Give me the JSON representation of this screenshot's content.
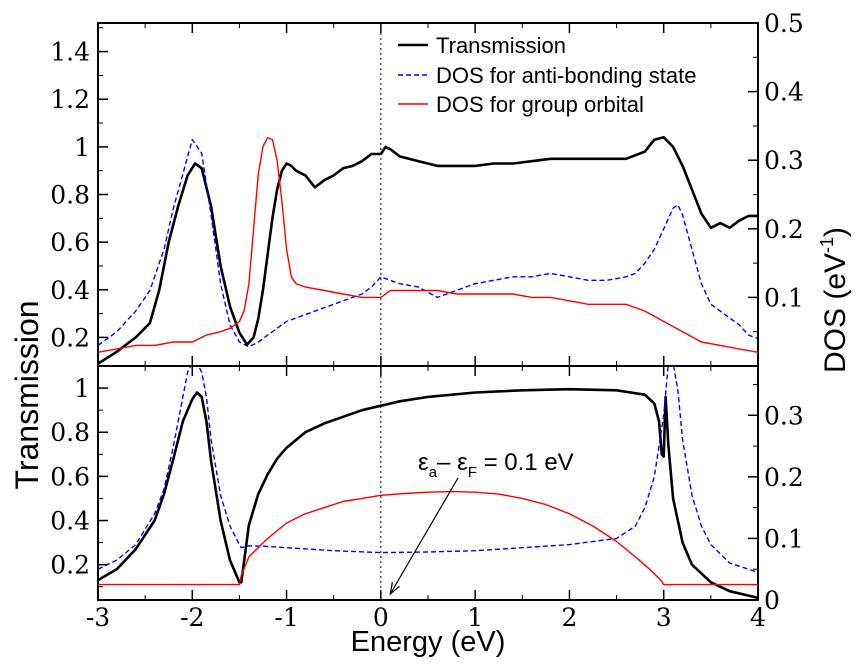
{
  "chart_data": {
    "type": "line",
    "colors": {
      "transmission": "#000000",
      "antibonding": "#0000ff",
      "group": "#ff0000",
      "axis": "#000000"
    },
    "xlabel": "Energy (eV)",
    "ylabel_left": "Transmission",
    "ylabel_right_main": "DOS (eV",
    "ylabel_right_sup": "-1",
    "ylabel_right_end": ")",
    "xlim": [
      -3,
      4
    ],
    "x_ticks": [
      -3,
      -2,
      -1,
      0,
      1,
      2,
      3,
      4
    ],
    "x_tick_labels": [
      "-3",
      "-2",
      "-1",
      "0",
      "1",
      "2",
      "3",
      "4"
    ],
    "fermi_line_x": 0,
    "panels": [
      {
        "name": "top",
        "ylim_left": [
          0.08,
          1.52
        ],
        "ylim_right": [
          0.0,
          0.5
        ],
        "left_ticks": [
          0.2,
          0.4,
          0.6,
          0.8,
          1.0,
          1.2,
          1.4
        ],
        "left_tick_labels": [
          "0.2",
          "0.4",
          "0.6",
          "0.8",
          "1",
          "1.2",
          "1.4"
        ],
        "right_ticks": [
          0.1,
          0.2,
          0.3,
          0.4,
          0.5
        ],
        "right_tick_labels": [
          "0.1",
          "0.2",
          "0.3",
          "0.4",
          "0.5"
        ],
        "legend": [
          "Transmission",
          "DOS for anti-bonding state",
          "DOS for group orbital"
        ],
        "series": [
          {
            "name": "Transmission",
            "axis": "left",
            "color_key": "transmission",
            "dash": false,
            "width": 2.6,
            "x": [
              -3,
              -2.8,
              -2.6,
              -2.45,
              -2.35,
              -2.25,
              -2.15,
              -2.05,
              -1.97,
              -1.9,
              -1.8,
              -1.7,
              -1.6,
              -1.5,
              -1.42,
              -1.35,
              -1.3,
              -1.25,
              -1.2,
              -1.15,
              -1.1,
              -1.05,
              -1.0,
              -0.95,
              -0.9,
              -0.8,
              -0.7,
              -0.6,
              -0.5,
              -0.4,
              -0.3,
              -0.2,
              -0.1,
              0.0,
              0.05,
              0.1,
              0.2,
              0.4,
              0.6,
              0.8,
              1.0,
              1.2,
              1.4,
              1.6,
              1.8,
              2.0,
              2.2,
              2.4,
              2.6,
              2.8,
              2.9,
              3.0,
              3.1,
              3.2,
              3.3,
              3.4,
              3.5,
              3.6,
              3.7,
              3.8,
              3.9,
              4.0
            ],
            "y": [
              0.09,
              0.14,
              0.2,
              0.26,
              0.4,
              0.6,
              0.75,
              0.88,
              0.93,
              0.91,
              0.75,
              0.5,
              0.33,
              0.22,
              0.17,
              0.2,
              0.28,
              0.4,
              0.55,
              0.7,
              0.82,
              0.9,
              0.93,
              0.92,
              0.9,
              0.88,
              0.83,
              0.86,
              0.88,
              0.91,
              0.92,
              0.94,
              0.97,
              0.97,
              1.0,
              0.99,
              0.96,
              0.94,
              0.92,
              0.92,
              0.92,
              0.93,
              0.93,
              0.94,
              0.95,
              0.95,
              0.95,
              0.95,
              0.95,
              0.98,
              1.03,
              1.04,
              1.0,
              0.92,
              0.82,
              0.72,
              0.66,
              0.68,
              0.66,
              0.69,
              0.71,
              0.71
            ]
          },
          {
            "name": "DOS for anti-bonding state",
            "axis": "right",
            "color_key": "antibonding",
            "dash": true,
            "width": 1.4,
            "x": [
              -3,
              -2.8,
              -2.6,
              -2.45,
              -2.3,
              -2.2,
              -2.1,
              -2.0,
              -1.9,
              -1.8,
              -1.7,
              -1.6,
              -1.5,
              -1.4,
              -1.3,
              -1.2,
              -1.1,
              -1.0,
              -0.9,
              -0.8,
              -0.7,
              -0.6,
              -0.5,
              -0.4,
              -0.3,
              -0.2,
              -0.1,
              0.0,
              0.1,
              0.2,
              0.4,
              0.6,
              0.8,
              1.0,
              1.2,
              1.4,
              1.6,
              1.8,
              2.0,
              2.2,
              2.4,
              2.6,
              2.7,
              2.8,
              2.9,
              3.0,
              3.1,
              3.15,
              3.2,
              3.3,
              3.4,
              3.5,
              3.6,
              3.7,
              3.8,
              3.9,
              4.0
            ],
            "y": [
              0.03,
              0.05,
              0.08,
              0.11,
              0.17,
              0.23,
              0.28,
              0.33,
              0.31,
              0.22,
              0.12,
              0.06,
              0.035,
              0.028,
              0.035,
              0.045,
              0.055,
              0.065,
              0.07,
              0.075,
              0.08,
              0.085,
              0.09,
              0.095,
              0.1,
              0.105,
              0.115,
              0.13,
              0.125,
              0.12,
              0.115,
              0.1,
              0.11,
              0.12,
              0.125,
              0.13,
              0.13,
              0.135,
              0.13,
              0.125,
              0.125,
              0.13,
              0.135,
              0.15,
              0.17,
              0.2,
              0.23,
              0.235,
              0.22,
              0.17,
              0.12,
              0.09,
              0.08,
              0.07,
              0.06,
              0.045,
              0.04
            ]
          },
          {
            "name": "DOS for group orbital",
            "axis": "right",
            "color_key": "group",
            "dash": false,
            "width": 1.4,
            "x": [
              -3,
              -2.8,
              -2.6,
              -2.4,
              -2.2,
              -2.0,
              -1.85,
              -1.7,
              -1.6,
              -1.5,
              -1.45,
              -1.4,
              -1.35,
              -1.3,
              -1.25,
              -1.2,
              -1.15,
              -1.1,
              -1.05,
              -1.0,
              -0.95,
              -0.9,
              -0.8,
              -0.6,
              -0.4,
              -0.2,
              -0.1,
              0.0,
              0.1,
              0.2,
              0.4,
              0.6,
              0.8,
              1.0,
              1.2,
              1.4,
              1.6,
              1.8,
              2.0,
              2.2,
              2.4,
              2.6,
              2.8,
              3.0,
              3.2,
              3.4,
              3.6,
              3.8,
              4.0
            ],
            "y": [
              0.02,
              0.025,
              0.03,
              0.03,
              0.035,
              0.035,
              0.045,
              0.05,
              0.055,
              0.065,
              0.08,
              0.12,
              0.2,
              0.28,
              0.32,
              0.333,
              0.33,
              0.3,
              0.24,
              0.17,
              0.13,
              0.12,
              0.115,
              0.11,
              0.105,
              0.1,
              0.1,
              0.1,
              0.11,
              0.11,
              0.11,
              0.11,
              0.105,
              0.105,
              0.105,
              0.105,
              0.1,
              0.1,
              0.095,
              0.09,
              0.09,
              0.09,
              0.08,
              0.065,
              0.05,
              0.035,
              0.03,
              0.025,
              0.02
            ]
          }
        ]
      },
      {
        "name": "bottom",
        "ylim_left": [
          0.04,
          1.1
        ],
        "ylim_right": [
          0.0,
          0.38
        ],
        "left_ticks": [
          0.2,
          0.4,
          0.6,
          0.8,
          1.0
        ],
        "left_tick_labels": [
          "0.2",
          "0.4",
          "0.6",
          "0.8",
          "1"
        ],
        "right_ticks": [
          0.0,
          0.1,
          0.2,
          0.3
        ],
        "right_tick_labels": [
          "0",
          "0.1",
          "0.2",
          "0.3"
        ],
        "annotation": {
          "main1": "ε",
          "sub1": "a",
          "mid": "– ε",
          "sub2": "F",
          "tail": " = 0.1 eV",
          "arrow_to_x": 0.1
        },
        "series": [
          {
            "name": "Transmission",
            "axis": "left",
            "color_key": "transmission",
            "dash": false,
            "width": 2.6,
            "x": [
              -3,
              -2.8,
              -2.6,
              -2.4,
              -2.3,
              -2.2,
              -2.1,
              -2.0,
              -1.95,
              -1.9,
              -1.85,
              -1.8,
              -1.7,
              -1.6,
              -1.5,
              -1.48,
              -1.4,
              -1.3,
              -1.2,
              -1.1,
              -1.0,
              -0.8,
              -0.6,
              -0.4,
              -0.2,
              0.0,
              0.2,
              0.5,
              1.0,
              1.5,
              2.0,
              2.5,
              2.8,
              2.9,
              2.95,
              2.98,
              3.0,
              3.02,
              3.05,
              3.1,
              3.2,
              3.3,
              3.5,
              3.7,
              3.9,
              4.0
            ],
            "y": [
              0.13,
              0.18,
              0.27,
              0.4,
              0.52,
              0.68,
              0.85,
              0.95,
              0.98,
              0.96,
              0.85,
              0.67,
              0.4,
              0.22,
              0.12,
              0.12,
              0.38,
              0.52,
              0.61,
              0.68,
              0.73,
              0.8,
              0.84,
              0.87,
              0.9,
              0.92,
              0.94,
              0.96,
              0.98,
              0.99,
              0.995,
              0.99,
              0.97,
              0.93,
              0.85,
              0.7,
              0.69,
              0.96,
              0.74,
              0.5,
              0.3,
              0.2,
              0.12,
              0.08,
              0.06,
              0.05
            ]
          },
          {
            "name": "DOS for anti-bonding state",
            "axis": "right",
            "color_key": "antibonding",
            "dash": true,
            "width": 1.4,
            "x": [
              -3,
              -2.8,
              -2.6,
              -2.4,
              -2.3,
              -2.2,
              -2.1,
              -2.05,
              -2.0,
              -1.95,
              -1.9,
              -1.85,
              -1.8,
              -1.7,
              -1.6,
              -1.5,
              -1.48,
              -1.4,
              -1.2,
              -1.0,
              -0.8,
              -0.5,
              0.0,
              0.5,
              1.0,
              1.5,
              2.0,
              2.5,
              2.7,
              2.8,
              2.9,
              2.95,
              3.0,
              3.05,
              3.1,
              3.15,
              3.2,
              3.3,
              3.4,
              3.5,
              3.7,
              3.9,
              4.0
            ],
            "y": [
              0.05,
              0.065,
              0.09,
              0.14,
              0.18,
              0.25,
              0.33,
              0.37,
              0.385,
              0.385,
              0.37,
              0.33,
              0.26,
              0.17,
              0.12,
              0.09,
              0.085,
              0.088,
              0.087,
              0.085,
              0.083,
              0.08,
              0.077,
              0.078,
              0.08,
              0.085,
              0.09,
              0.1,
              0.12,
              0.15,
              0.2,
              0.25,
              0.3,
              0.385,
              0.385,
              0.34,
              0.26,
              0.17,
              0.12,
              0.09,
              0.06,
              0.05,
              0.045
            ]
          },
          {
            "name": "DOS for group orbital",
            "axis": "right",
            "color_key": "group",
            "dash": false,
            "width": 1.4,
            "x": [
              -3,
              -2.0,
              -1.5,
              -1.48,
              -1.4,
              -1.2,
              -1.0,
              -0.8,
              -0.6,
              -0.4,
              -0.2,
              0.0,
              0.25,
              0.5,
              0.75,
              1.0,
              1.25,
              1.5,
              1.75,
              2.0,
              2.25,
              2.5,
              2.7,
              2.85,
              2.95,
              2.98,
              3.0,
              3.5,
              4.0
            ],
            "y": [
              0.025,
              0.025,
              0.025,
              0.04,
              0.07,
              0.1,
              0.125,
              0.14,
              0.15,
              0.16,
              0.165,
              0.17,
              0.173,
              0.175,
              0.176,
              0.175,
              0.172,
              0.165,
              0.155,
              0.14,
              0.12,
              0.095,
              0.07,
              0.05,
              0.035,
              0.03,
              0.025,
              0.025,
              0.025
            ]
          }
        ]
      }
    ]
  }
}
